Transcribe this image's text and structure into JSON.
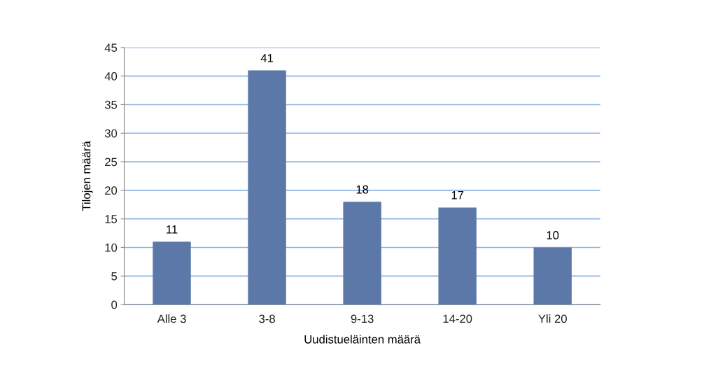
{
  "chart_data": {
    "type": "bar",
    "xlabel": "Uudistueläinten määrä",
    "ylabel": "Tilojen määrä",
    "categories": [
      "Alle 3",
      "3-8",
      "9-13",
      "14-20",
      "Yli 20"
    ],
    "values": [
      11,
      41,
      18,
      17,
      10
    ],
    "color": "#5b78a8",
    "ylim": [
      0,
      45
    ],
    "yticks": [
      0,
      5,
      10,
      15,
      20,
      25,
      30,
      35,
      40,
      45
    ],
    "grid": "y",
    "data_labels": true,
    "legend": false
  }
}
